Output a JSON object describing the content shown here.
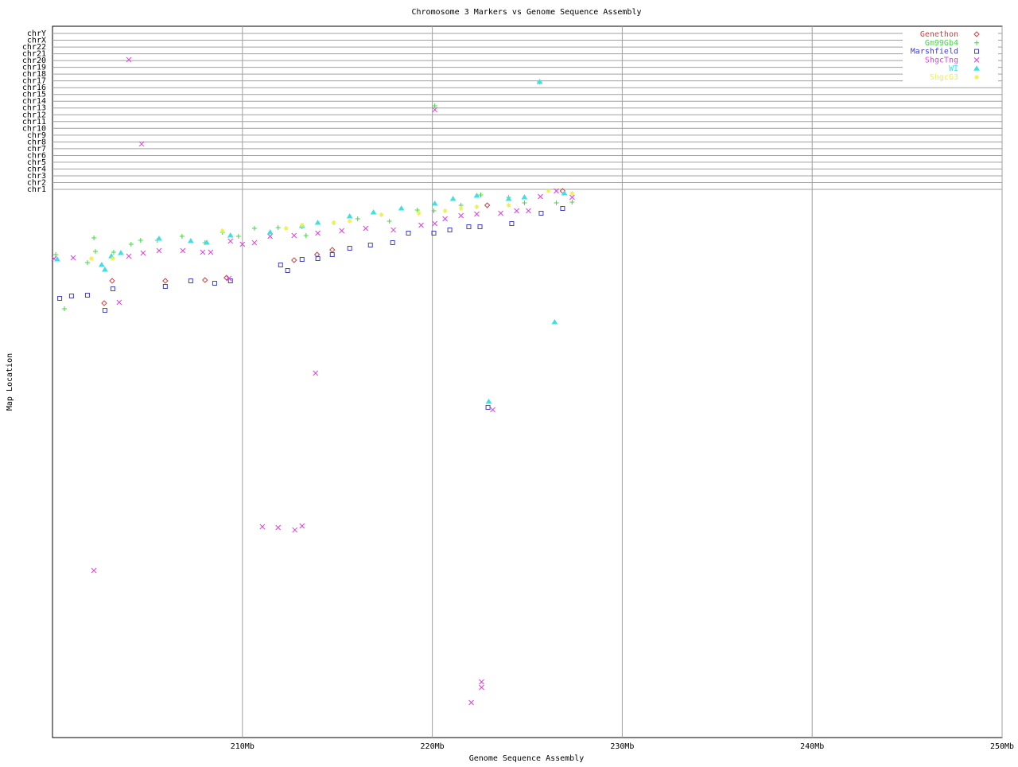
{
  "chart_data": {
    "type": "scatter",
    "title": "Chromosome 3 Markers vs Genome Sequence Assembly",
    "x_label": "Genome Sequence Assembly",
    "y_label": "Map Location",
    "xlim": [
      200,
      250
    ],
    "xticks": [
      {
        "value": 210,
        "label": "210Mb"
      },
      {
        "value": 220,
        "label": "220Mb"
      },
      {
        "value": 230,
        "label": "230Mb"
      },
      {
        "value": 240,
        "label": "240Mb"
      },
      {
        "value": 250,
        "label": "250Mb"
      }
    ],
    "ylim": [
      0,
      100
    ],
    "invert_y": true,
    "yticks": [
      {
        "value": 22.93,
        "label": "chr1"
      },
      {
        "value": 21.98,
        "label": "chr2"
      },
      {
        "value": 21.03,
        "label": "chr3"
      },
      {
        "value": 20.07,
        "label": "chr4"
      },
      {
        "value": 19.12,
        "label": "chr5"
      },
      {
        "value": 18.17,
        "label": "chr6"
      },
      {
        "value": 17.21,
        "label": "chr7"
      },
      {
        "value": 16.26,
        "label": "chr8"
      },
      {
        "value": 15.31,
        "label": "chr9"
      },
      {
        "value": 14.35,
        "label": "chr10"
      },
      {
        "value": 13.4,
        "label": "chr11"
      },
      {
        "value": 12.45,
        "label": "chr12"
      },
      {
        "value": 11.49,
        "label": "chr13"
      },
      {
        "value": 10.54,
        "label": "chr14"
      },
      {
        "value": 9.59,
        "label": "chr15"
      },
      {
        "value": 8.64,
        "label": "chr16"
      },
      {
        "value": 7.68,
        "label": "chr17"
      },
      {
        "value": 6.73,
        "label": "chr18"
      },
      {
        "value": 5.78,
        "label": "chr19"
      },
      {
        "value": 4.82,
        "label": "chr20"
      },
      {
        "value": 3.87,
        "label": "chr21"
      },
      {
        "value": 2.92,
        "label": "chr22"
      },
      {
        "value": 1.96,
        "label": "chrX"
      },
      {
        "value": 1.01,
        "label": "chrY"
      }
    ],
    "grid": true,
    "legend": "top-right",
    "series": [
      {
        "name": "Genethon",
        "color": "#d04040",
        "marker": "diamond",
        "x": [
          202.72,
          203.14,
          205.94,
          208.03,
          209.16,
          212.72,
          213.93,
          214.73,
          222.89,
          226.86
        ],
        "values": [
          38.93,
          35.79,
          35.79,
          35.68,
          35.35,
          32.89,
          32.1,
          31.43,
          25.17,
          23.15
        ]
      },
      {
        "name": "Gm99Gb4",
        "color": "#40d840",
        "marker": "plus",
        "x": [
          200.17,
          200.63,
          202.18,
          202.26,
          203.22,
          204.64,
          205.52,
          206.82,
          208.03,
          208.95,
          209.79,
          210.63,
          211.88,
          213.35,
          213.14,
          214.81,
          216.07,
          217.74,
          219.21,
          220.08,
          221.51,
          222.55,
          224.02,
          224.85,
          226.53,
          227.36,
          225.65,
          220.13,
          201.84,
          204.14
        ],
        "values": [
          32.1,
          39.71,
          29.75,
          31.66,
          31.77,
          30.09,
          30.09,
          29.53,
          30.43,
          28.97,
          29.53,
          28.41,
          28.3,
          29.42,
          28.19,
          27.63,
          27.07,
          27.4,
          25.84,
          25.95,
          25.17,
          23.71,
          24.05,
          24.83,
          24.83,
          24.72,
          7.83,
          11.19,
          33.22,
          30.65
        ]
      },
      {
        "name": "Marshfield",
        "color": "#4040c8",
        "marker": "square",
        "x": [
          200.38,
          201.0,
          201.84,
          202.76,
          203.18,
          205.94,
          207.28,
          208.54,
          209.37,
          212.01,
          212.38,
          213.14,
          213.97,
          214.73,
          215.65,
          216.74,
          217.91,
          218.74,
          220.08,
          220.92,
          221.92,
          222.51,
          224.18,
          225.73,
          226.86,
          222.93
        ],
        "values": [
          38.26,
          37.92,
          37.81,
          39.93,
          36.91,
          36.58,
          35.79,
          36.13,
          35.79,
          33.56,
          34.34,
          32.77,
          32.66,
          32.1,
          31.21,
          30.76,
          30.43,
          29.08,
          29.08,
          28.64,
          28.19,
          28.19,
          27.74,
          26.29,
          25.62,
          53.58
        ]
      },
      {
        "name": "ShgcTng",
        "color": "#e040e0",
        "marker": "cross",
        "x": [
          204.02,
          204.69,
          200.08,
          201.09,
          202.18,
          203.51,
          204.02,
          204.77,
          205.61,
          206.86,
          207.91,
          208.33,
          209.37,
          210.0,
          210.63,
          211.46,
          212.72,
          213.85,
          213.97,
          215.23,
          216.49,
          217.95,
          219.41,
          220.13,
          220.67,
          221.51,
          222.34,
          223.6,
          224.44,
          225.06,
          225.69,
          226.53,
          227.36,
          211.05,
          211.88,
          212.76,
          213.14,
          222.05,
          222.59,
          222.59,
          223.18,
          220.13,
          209.29
        ],
        "values": [
          4.7,
          16.55,
          32.66,
          32.55,
          76.51,
          38.81,
          32.33,
          31.88,
          31.54,
          31.54,
          31.77,
          31.77,
          30.2,
          30.65,
          30.43,
          29.53,
          29.42,
          48.77,
          29.08,
          28.75,
          28.41,
          28.64,
          27.96,
          27.74,
          27.07,
          26.62,
          26.4,
          26.29,
          25.95,
          25.95,
          23.94,
          23.15,
          24.05,
          70.36,
          70.47,
          70.81,
          70.25,
          95.08,
          92.17,
          92.95,
          53.91,
          11.74,
          35.46
        ]
      },
      {
        "name": "WI",
        "color": "#40e0e0",
        "marker": "triangle",
        "x": [
          200.25,
          202.59,
          202.76,
          203.1,
          203.6,
          205.61,
          207.28,
          208.12,
          209.37,
          211.46,
          213.14,
          213.97,
          215.65,
          216.9,
          218.37,
          220.13,
          221.09,
          222.34,
          224.02,
          224.85,
          226.44,
          225.65,
          222.97,
          226.95
        ],
        "values": [
          32.77,
          33.56,
          34.23,
          32.33,
          31.88,
          29.87,
          30.2,
          30.43,
          29.42,
          28.97,
          28.08,
          27.63,
          26.73,
          26.17,
          25.62,
          24.94,
          24.27,
          23.83,
          24.27,
          24.05,
          41.61,
          7.83,
          52.8,
          23.49
        ]
      },
      {
        "name": "ShgcG3",
        "color": "#f0f040",
        "marker": "star",
        "x": [
          202.05,
          203.18,
          208.95,
          212.3,
          213.14,
          214.81,
          215.65,
          217.32,
          219.29,
          220.67,
          221.51,
          222.34,
          224.02,
          226.11,
          227.36
        ],
        "values": [
          32.66,
          32.66,
          28.75,
          28.41,
          27.96,
          27.63,
          27.4,
          26.51,
          26.29,
          25.95,
          25.62,
          25.39,
          25.17,
          23.15,
          23.49
        ]
      }
    ]
  }
}
